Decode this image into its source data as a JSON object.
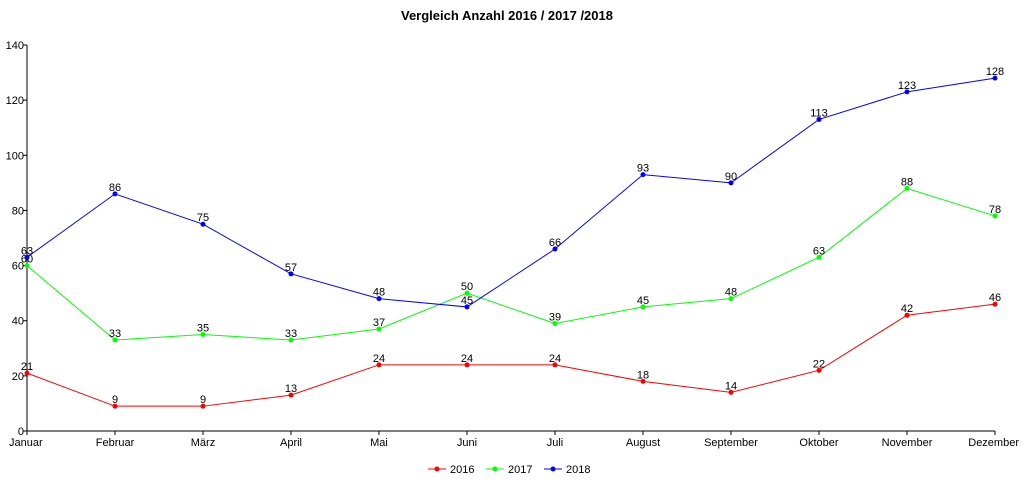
{
  "chart_data": {
    "type": "line",
    "title": "Vergleich Anzahl 2016 / 2017 /2018",
    "xlabel": "",
    "ylabel": "",
    "categories": [
      "Januar",
      "Februar",
      "März",
      "April",
      "Mai",
      "Juni",
      "Juli",
      "August",
      "September",
      "Oktober",
      "November",
      "Dezember"
    ],
    "ylim": [
      0,
      140
    ],
    "yticks": [
      0,
      20,
      40,
      60,
      80,
      100,
      120,
      140
    ],
    "grid": false,
    "legend": "bottom",
    "series": [
      {
        "name": "2016",
        "color": "#ff0000",
        "values": [
          21,
          9,
          9,
          13,
          24,
          24,
          24,
          18,
          14,
          22,
          42,
          46
        ]
      },
      {
        "name": "2017",
        "color": "#00ff00",
        "values": [
          60,
          33,
          35,
          33,
          37,
          50,
          39,
          45,
          48,
          63,
          88,
          78
        ]
      },
      {
        "name": "2018",
        "color": "#0000ff",
        "values": [
          63,
          86,
          75,
          57,
          48,
          45,
          66,
          93,
          90,
          113,
          123,
          128
        ]
      }
    ]
  }
}
